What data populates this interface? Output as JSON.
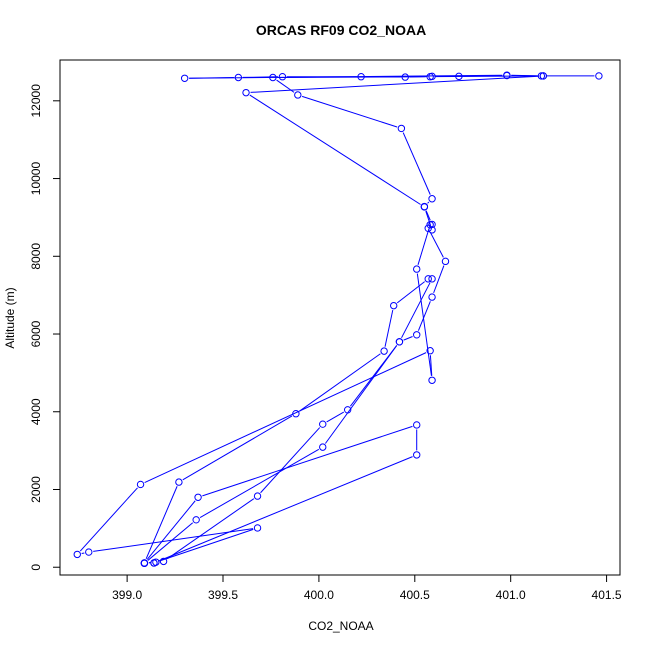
{
  "chart_data": {
    "type": "line",
    "title": "ORCAS RF09 CO2_NOAA",
    "xlabel": "CO2_NOAA",
    "ylabel": "Altitude (m)",
    "xlim": [
      398.65,
      401.57
    ],
    "ylim": [
      -200,
      13050
    ],
    "xticks": [
      399.0,
      399.5,
      400.0,
      400.5,
      401.0,
      401.5
    ],
    "xtick_labels": [
      "399.0",
      "399.5",
      "400.0",
      "400.5",
      "401.0",
      "401.5"
    ],
    "yticks": [
      0,
      2000,
      4000,
      6000,
      8000,
      10000,
      12000
    ],
    "ytick_labels": [
      "0",
      "2000",
      "4000",
      "6000",
      "8000",
      "10000",
      "12000"
    ],
    "markers": "open-circle",
    "grid": false,
    "legend": "none",
    "color": "#0000ff",
    "series": [
      {
        "points": [
          [
            401.46,
            12640
          ],
          [
            401.16,
            12640
          ],
          [
            400.98,
            12650
          ],
          [
            400.73,
            12630
          ],
          [
            400.59,
            12630
          ],
          [
            400.45,
            12610
          ],
          [
            400.22,
            12620
          ],
          [
            399.81,
            12620
          ],
          [
            399.58,
            12600
          ],
          [
            399.3,
            12580
          ],
          [
            400.98,
            12660
          ],
          [
            401.17,
            12640
          ],
          [
            400.58,
            12620
          ],
          [
            399.76,
            12600
          ],
          [
            399.89,
            12150
          ],
          [
            400.43,
            11290
          ],
          [
            400.59,
            9480
          ],
          [
            400.55,
            9280
          ],
          [
            400.59,
            8820
          ],
          [
            400.57,
            8720
          ],
          [
            400.66,
            7870
          ],
          [
            400.59,
            6950
          ],
          [
            400.51,
            5980
          ],
          [
            400.42,
            5800
          ],
          [
            400.15,
            4050
          ],
          [
            400.02,
            3680
          ],
          [
            399.68,
            1830
          ],
          [
            399.19,
            150
          ],
          [
            399.14,
            110
          ],
          [
            399.09,
            100
          ],
          [
            399.36,
            1220
          ],
          [
            400.02,
            3090
          ],
          [
            400.42,
            5800
          ],
          [
            400.59,
            7420
          ],
          [
            400.57,
            7420
          ],
          [
            400.39,
            6730
          ],
          [
            400.34,
            5560
          ],
          [
            399.88,
            3950
          ],
          [
            399.27,
            2190
          ],
          [
            399.09,
            110
          ],
          [
            399.14,
            110
          ],
          [
            400.51,
            2890
          ],
          [
            400.51,
            3660
          ],
          [
            399.37,
            1800
          ],
          [
            399.09,
            110
          ],
          [
            399.15,
            130
          ],
          [
            399.68,
            1010
          ],
          [
            398.8,
            390
          ],
          [
            398.74,
            330
          ],
          [
            399.07,
            2130
          ],
          [
            400.58,
            5570
          ],
          [
            400.59,
            4810
          ],
          [
            400.51,
            7670
          ],
          [
            400.58,
            8810
          ],
          [
            400.59,
            8680
          ],
          [
            400.55,
            9270
          ],
          [
            399.62,
            12210
          ],
          [
            401.17,
            12640
          ]
        ]
      }
    ]
  }
}
